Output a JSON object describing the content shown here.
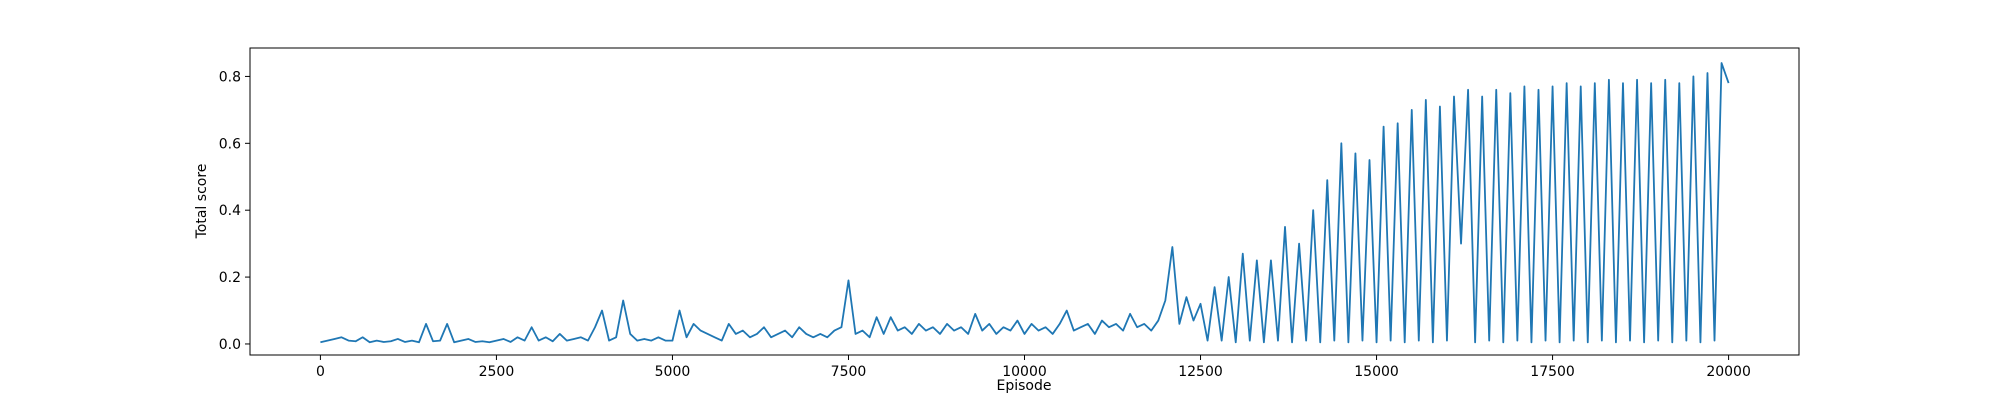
{
  "chart_data": {
    "type": "line",
    "x_label": "Episode",
    "y_label": "Total score",
    "x": [
      0,
      100,
      200,
      300,
      400,
      500,
      600,
      700,
      800,
      900,
      1000,
      1100,
      1200,
      1300,
      1400,
      1500,
      1600,
      1700,
      1800,
      1900,
      2000,
      2100,
      2200,
      2300,
      2400,
      2500,
      2600,
      2700,
      2800,
      2900,
      3000,
      3100,
      3200,
      3300,
      3400,
      3500,
      3600,
      3700,
      3800,
      3900,
      4000,
      4100,
      4200,
      4300,
      4400,
      4500,
      4600,
      4700,
      4800,
      4900,
      5000,
      5100,
      5200,
      5300,
      5400,
      5500,
      5600,
      5700,
      5800,
      5900,
      6000,
      6100,
      6200,
      6300,
      6400,
      6500,
      6600,
      6700,
      6800,
      6900,
      7000,
      7100,
      7200,
      7300,
      7400,
      7500,
      7600,
      7700,
      7800,
      7900,
      8000,
      8100,
      8200,
      8300,
      8400,
      8500,
      8600,
      8700,
      8800,
      8900,
      9000,
      9100,
      9200,
      9300,
      9400,
      9500,
      9600,
      9700,
      9800,
      9900,
      10000,
      10100,
      10200,
      10300,
      10400,
      10500,
      10600,
      10700,
      10800,
      10900,
      11000,
      11100,
      11200,
      11300,
      11400,
      11500,
      11600,
      11700,
      11800,
      11900,
      12000,
      12100,
      12200,
      12300,
      12400,
      12500,
      12600,
      12700,
      12800,
      12900,
      13000,
      13100,
      13200,
      13300,
      13400,
      13500,
      13600,
      13700,
      13800,
      13900,
      14000,
      14100,
      14200,
      14300,
      14400,
      14500,
      14600,
      14700,
      14800,
      14900,
      15000,
      15100,
      15200,
      15300,
      15400,
      15500,
      15600,
      15700,
      15800,
      15900,
      16000,
      16100,
      16200,
      16300,
      16400,
      16500,
      16600,
      16700,
      16800,
      16900,
      17000,
      17100,
      17200,
      17300,
      17400,
      17500,
      17600,
      17700,
      17800,
      17900,
      18000,
      18100,
      18200,
      18300,
      18400,
      18500,
      18600,
      18700,
      18800,
      18900,
      19000,
      19100,
      19200,
      19300,
      19400,
      19500,
      19600,
      19700,
      19800,
      19900,
      20000
    ],
    "series": [
      {
        "color": "#1f77b4",
        "values": [
          0.005,
          0.01,
          0.015,
          0.02,
          0.01,
          0.008,
          0.02,
          0.005,
          0.01,
          0.006,
          0.008,
          0.015,
          0.006,
          0.01,
          0.005,
          0.06,
          0.008,
          0.01,
          0.06,
          0.005,
          0.01,
          0.015,
          0.006,
          0.008,
          0.005,
          0.01,
          0.015,
          0.006,
          0.02,
          0.01,
          0.05,
          0.01,
          0.02,
          0.008,
          0.03,
          0.01,
          0.015,
          0.02,
          0.01,
          0.05,
          0.1,
          0.01,
          0.02,
          0.13,
          0.03,
          0.01,
          0.015,
          0.01,
          0.02,
          0.01,
          0.01,
          0.1,
          0.02,
          0.06,
          0.04,
          0.03,
          0.02,
          0.01,
          0.06,
          0.03,
          0.04,
          0.02,
          0.03,
          0.05,
          0.02,
          0.03,
          0.04,
          0.02,
          0.05,
          0.03,
          0.02,
          0.03,
          0.02,
          0.04,
          0.05,
          0.19,
          0.03,
          0.04,
          0.02,
          0.08,
          0.03,
          0.08,
          0.04,
          0.05,
          0.03,
          0.06,
          0.04,
          0.05,
          0.03,
          0.06,
          0.04,
          0.05,
          0.03,
          0.09,
          0.04,
          0.06,
          0.03,
          0.05,
          0.04,
          0.07,
          0.03,
          0.06,
          0.04,
          0.05,
          0.03,
          0.06,
          0.1,
          0.04,
          0.05,
          0.06,
          0.03,
          0.07,
          0.05,
          0.06,
          0.04,
          0.09,
          0.05,
          0.06,
          0.04,
          0.07,
          0.13,
          0.29,
          0.06,
          0.14,
          0.07,
          0.12,
          0.01,
          0.17,
          0.01,
          0.2,
          0.005,
          0.27,
          0.01,
          0.25,
          0.005,
          0.25,
          0.01,
          0.35,
          0.005,
          0.3,
          0.01,
          0.4,
          0.005,
          0.49,
          0.01,
          0.6,
          0.005,
          0.57,
          0.01,
          0.55,
          0.005,
          0.65,
          0.01,
          0.66,
          0.005,
          0.7,
          0.01,
          0.73,
          0.005,
          0.71,
          0.01,
          0.74,
          0.3,
          0.76,
          0.005,
          0.74,
          0.01,
          0.76,
          0.005,
          0.75,
          0.01,
          0.77,
          0.005,
          0.76,
          0.01,
          0.77,
          0.005,
          0.78,
          0.01,
          0.77,
          0.005,
          0.78,
          0.01,
          0.79,
          0.005,
          0.78,
          0.01,
          0.79,
          0.005,
          0.78,
          0.01,
          0.79,
          0.005,
          0.78,
          0.01,
          0.8,
          0.005,
          0.81,
          0.01,
          0.84,
          0.78
        ]
      }
    ],
    "xlim": [
      -1000,
      21000
    ],
    "xticks": [
      0,
      2500,
      5000,
      7500,
      10000,
      12500,
      15000,
      17500,
      20000
    ],
    "ylim": [
      -0.033,
      0.885
    ],
    "yticks": [
      {
        "value": 0,
        "label": "0.0"
      },
      0.2,
      0.4,
      0.6,
      0.8
    ],
    "grid": false
  }
}
